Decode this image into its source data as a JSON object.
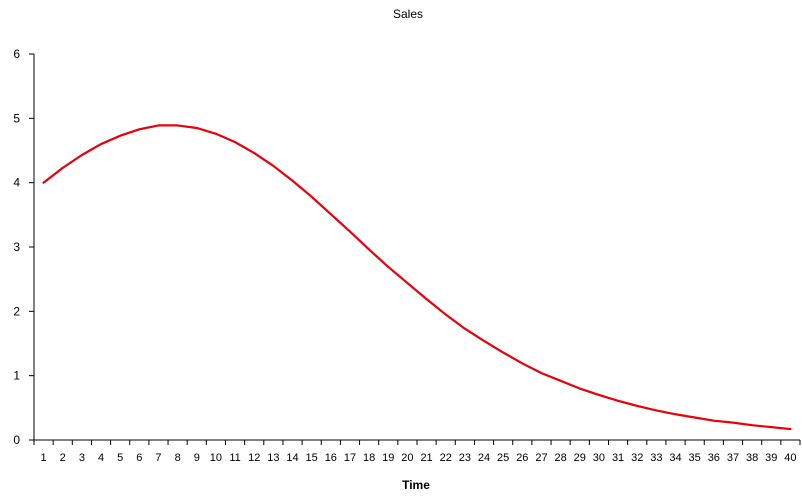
{
  "chart_data": {
    "type": "line",
    "title": "Sales",
    "xlabel": "Time",
    "ylabel": "",
    "ylim": [
      0,
      6
    ],
    "y_ticks": [
      0,
      1,
      2,
      3,
      4,
      5,
      6
    ],
    "grid": false,
    "legend": "none",
    "categories": [
      "1",
      "2",
      "3",
      "4",
      "5",
      "6",
      "7",
      "8",
      "9",
      "10",
      "11",
      "12",
      "13",
      "14",
      "15",
      "16",
      "17",
      "18",
      "19",
      "20",
      "21",
      "22",
      "23",
      "24",
      "25",
      "26",
      "27",
      "28",
      "29",
      "30",
      "31",
      "32",
      "33",
      "34",
      "35",
      "36",
      "37",
      "38",
      "39",
      "40"
    ],
    "series": [
      {
        "color": "#e8000b",
        "values": [
          4.0,
          4.23,
          4.43,
          4.6,
          4.73,
          4.83,
          4.89,
          4.89,
          4.85,
          4.76,
          4.63,
          4.46,
          4.26,
          4.03,
          3.78,
          3.51,
          3.24,
          2.96,
          2.69,
          2.44,
          2.19,
          1.95,
          1.73,
          1.54,
          1.36,
          1.19,
          1.04,
          0.92,
          0.8,
          0.7,
          0.61,
          0.53,
          0.46,
          0.4,
          0.35,
          0.3,
          0.27,
          0.23,
          0.2,
          0.17
        ]
      }
    ]
  }
}
